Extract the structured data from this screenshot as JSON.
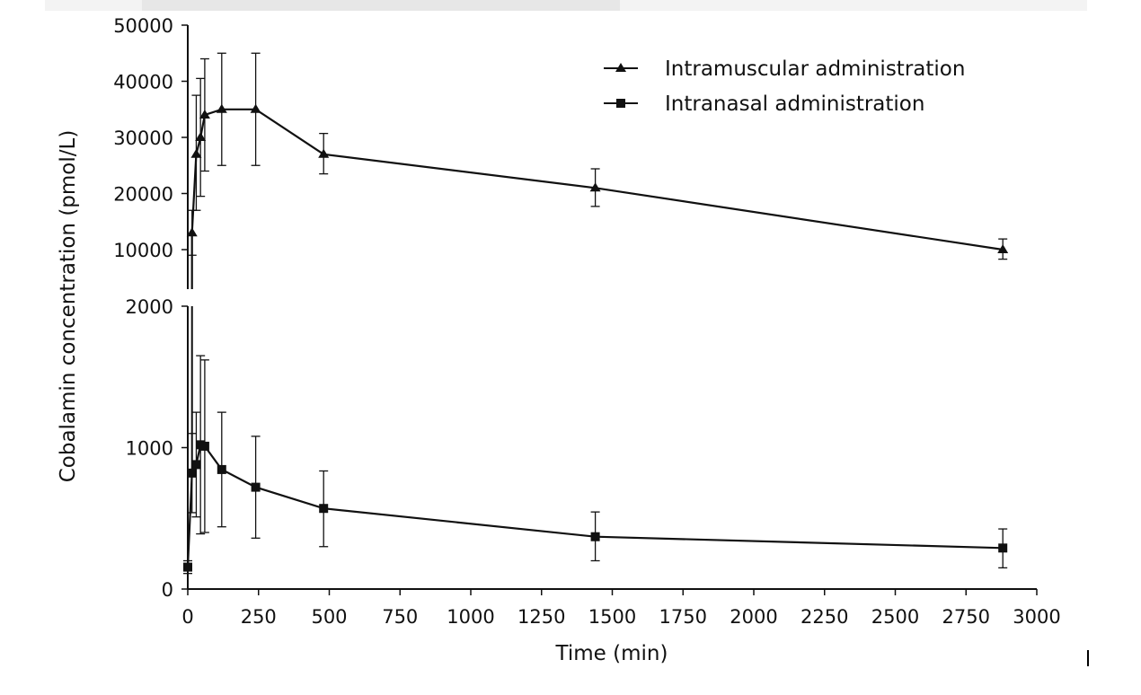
{
  "chart_data": {
    "type": "line",
    "title": "",
    "xlabel": "Time (min)",
    "ylabel": "Cobalamin concentration (pmol/L)",
    "xlim": [
      0,
      3000
    ],
    "x_ticks": [
      "0",
      "250",
      "500",
      "750",
      "1000",
      "1250",
      "1500",
      "1750",
      "2000",
      "2250",
      "2500",
      "2750",
      "3000"
    ],
    "upper_panel": {
      "ylim": [
        0,
        50000
      ],
      "y_ticks": [
        "50000",
        "40000",
        "30000",
        "20000",
        "10000"
      ],
      "y_tick_values": [
        50000,
        40000,
        30000,
        20000,
        10000
      ]
    },
    "lower_panel": {
      "ylim": [
        0,
        2000
      ],
      "y_ticks": [
        "2000",
        "1000",
        "0"
      ],
      "y_tick_values": [
        2000,
        1000,
        0
      ]
    },
    "grid": false,
    "legend_position": "top-right",
    "series": [
      {
        "name": "Intramuscular administration",
        "marker": "triangle",
        "panel": "upper",
        "x": [
          15,
          30,
          45,
          60,
          120,
          240,
          480,
          1440,
          2880
        ],
        "y": [
          13000,
          27000,
          30000,
          34000,
          35000,
          35000,
          27000,
          21000,
          10000
        ],
        "err_upper": [
          17000,
          37500,
          40500,
          44000,
          45000,
          45000,
          30700,
          24400,
          11900
        ],
        "err_lower": [
          9000,
          17000,
          19500,
          24000,
          25000,
          25000,
          23500,
          17700,
          8300
        ]
      },
      {
        "name": "Intranasal administration",
        "marker": "square",
        "panel": "lower",
        "x": [
          0,
          15,
          30,
          45,
          60,
          120,
          240,
          480,
          1440,
          2880
        ],
        "y": [
          155,
          820,
          880,
          1020,
          1010,
          845,
          720,
          570,
          370,
          290
        ],
        "err_upper": [
          200,
          1100,
          1250,
          1650,
          1620,
          1250,
          1080,
          835,
          545,
          425
        ],
        "err_lower": [
          110,
          540,
          510,
          390,
          400,
          440,
          360,
          300,
          200,
          150
        ]
      }
    ]
  }
}
